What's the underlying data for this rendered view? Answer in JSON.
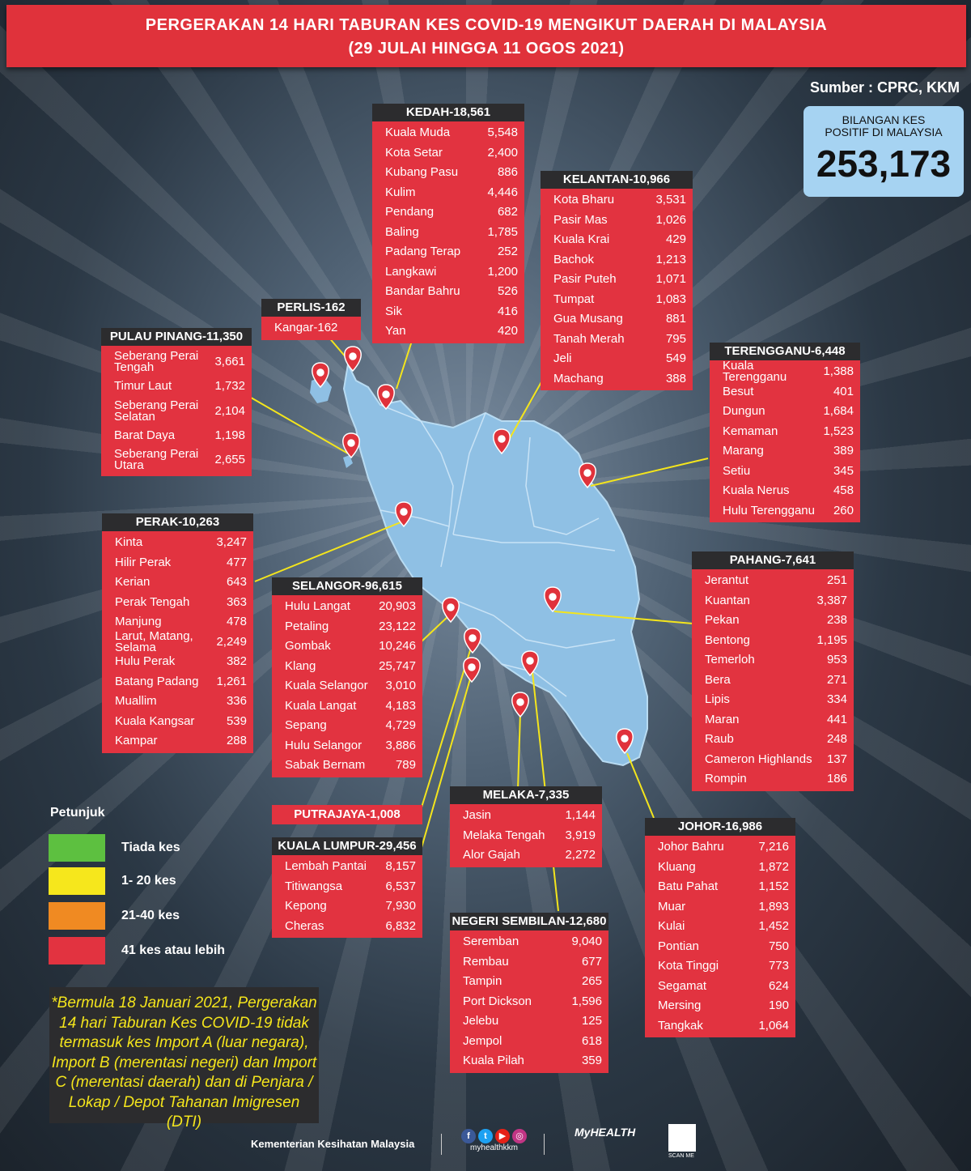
{
  "header": {
    "line1": "PERGERAKAN 14 HARI TABURAN KES COVID-19 MENGIKUT DAERAH DI MALAYSIA",
    "line2": "(29 JULAI HINGGA 11 OGOS 2021)"
  },
  "source": "Sumber : CPRC, KKM",
  "total": {
    "label_line1": "BILANGAN KES",
    "label_line2": "POSITIF DI MALAYSIA",
    "value": "253,173"
  },
  "states": {
    "kedah": {
      "title": "KEDAH-18,561",
      "items": [
        [
          "Kuala Muda",
          "5,548"
        ],
        [
          "Kota Setar",
          "2,400"
        ],
        [
          "Kubang Pasu",
          "886"
        ],
        [
          "Kulim",
          "4,446"
        ],
        [
          "Pendang",
          "682"
        ],
        [
          "Baling",
          "1,785"
        ],
        [
          "Padang Terap",
          "252"
        ],
        [
          "Langkawi",
          "1,200"
        ],
        [
          "Bandar Bahru",
          "526"
        ],
        [
          "Sik",
          "416"
        ],
        [
          "Yan",
          "420"
        ]
      ]
    },
    "kelantan": {
      "title": "KELANTAN-10,966",
      "items": [
        [
          "Kota Bharu",
          "3,531"
        ],
        [
          "Pasir Mas",
          "1,026"
        ],
        [
          "Kuala Krai",
          "429"
        ],
        [
          "Bachok",
          "1,213"
        ],
        [
          "Pasir Puteh",
          "1,071"
        ],
        [
          "Tumpat",
          "1,083"
        ],
        [
          "Gua Musang",
          "881"
        ],
        [
          "Tanah Merah",
          "795"
        ],
        [
          "Jeli",
          "549"
        ],
        [
          "Machang",
          "388"
        ]
      ]
    },
    "perlis": {
      "title": "PERLIS-162",
      "items": [
        [
          "Kangar-162",
          ""
        ]
      ]
    },
    "pulau_pinang": {
      "title": "PULAU PINANG-11,350",
      "items": [
        [
          "Seberang Perai Tengah",
          "3,661"
        ],
        [
          "Timur Laut",
          "1,732"
        ],
        [
          "Seberang Perai Selatan",
          "2,104"
        ],
        [
          "Barat Daya",
          "1,198"
        ],
        [
          "Seberang Perai Utara",
          "2,655"
        ]
      ]
    },
    "terengganu": {
      "title": "TERENGGANU-6,448",
      "items": [
        [
          "Kuala Terengganu",
          "1,388"
        ],
        [
          "Besut",
          "401"
        ],
        [
          "Dungun",
          "1,684"
        ],
        [
          "Kemaman",
          "1,523"
        ],
        [
          "Marang",
          "389"
        ],
        [
          "Setiu",
          "345"
        ],
        [
          "Kuala Nerus",
          "458"
        ],
        [
          "Hulu Terengganu",
          "260"
        ]
      ]
    },
    "perak": {
      "title": "PERAK-10,263",
      "items": [
        [
          "Kinta",
          "3,247"
        ],
        [
          "Hilir Perak",
          "477"
        ],
        [
          "Kerian",
          "643"
        ],
        [
          "Perak Tengah",
          "363"
        ],
        [
          "Manjung",
          "478"
        ],
        [
          "Larut, Matang, Selama",
          "2,249"
        ],
        [
          "Hulu Perak",
          "382"
        ],
        [
          "Batang Padang",
          "1,261"
        ],
        [
          "Muallim",
          "336"
        ],
        [
          "Kuala Kangsar",
          "539"
        ],
        [
          "Kampar",
          "288"
        ]
      ]
    },
    "selangor": {
      "title": "SELANGOR-96,615",
      "items": [
        [
          "Hulu Langat",
          "20,903"
        ],
        [
          "Petaling",
          "23,122"
        ],
        [
          "Gombak",
          "10,246"
        ],
        [
          "Klang",
          "25,747"
        ],
        [
          "Kuala Selangor",
          "3,010"
        ],
        [
          "Kuala Langat",
          "4,183"
        ],
        [
          "Sepang",
          "4,729"
        ],
        [
          "Hulu Selangor",
          "3,886"
        ],
        [
          "Sabak Bernam",
          "789"
        ]
      ]
    },
    "pahang": {
      "title": "PAHANG-7,641",
      "items": [
        [
          "Jerantut",
          "251"
        ],
        [
          "Kuantan",
          "3,387"
        ],
        [
          "Pekan",
          "238"
        ],
        [
          "Bentong",
          "1,195"
        ],
        [
          "Temerloh",
          "953"
        ],
        [
          "Bera",
          "271"
        ],
        [
          "Lipis",
          "334"
        ],
        [
          "Maran",
          "441"
        ],
        [
          "Raub",
          "248"
        ],
        [
          "Cameron Highlands",
          "137"
        ],
        [
          "Rompin",
          "186"
        ]
      ]
    },
    "putrajaya": {
      "title": "PUTRAJAYA-1,008"
    },
    "kuala_lumpur": {
      "title": "KUALA LUMPUR-29,456",
      "items": [
        [
          "Lembah Pantai",
          "8,157"
        ],
        [
          "Titiwangsa",
          "6,537"
        ],
        [
          "Kepong",
          "7,930"
        ],
        [
          "Cheras",
          "6,832"
        ]
      ]
    },
    "melaka": {
      "title": "MELAKA-7,335",
      "items": [
        [
          "Jasin",
          "1,144"
        ],
        [
          "Melaka Tengah",
          "3,919"
        ],
        [
          "Alor Gajah",
          "2,272"
        ]
      ]
    },
    "negeri_sembilan": {
      "title": "NEGERI SEMBILAN-12,680",
      "items": [
        [
          "Seremban",
          "9,040"
        ],
        [
          "Rembau",
          "677"
        ],
        [
          "Tampin",
          "265"
        ],
        [
          "Port Dickson",
          "1,596"
        ],
        [
          "Jelebu",
          "125"
        ],
        [
          "Jempol",
          "618"
        ],
        [
          "Kuala Pilah",
          "359"
        ]
      ]
    },
    "johor": {
      "title": "JOHOR-16,986",
      "items": [
        [
          "Johor Bahru",
          "7,216"
        ],
        [
          "Kluang",
          "1,872"
        ],
        [
          "Batu Pahat",
          "1,152"
        ],
        [
          "Muar",
          "1,893"
        ],
        [
          "Kulai",
          "1,452"
        ],
        [
          "Pontian",
          "750"
        ],
        [
          "Kota Tinggi",
          "773"
        ],
        [
          "Segamat",
          "624"
        ],
        [
          "Mersing",
          "190"
        ],
        [
          "Tangkak",
          "1,064"
        ]
      ]
    }
  },
  "legend": {
    "title": "Petunjuk",
    "items": [
      {
        "label": "Tiada kes",
        "color": "#5dc040"
      },
      {
        "label": "1- 20 kes",
        "color": "#f6e71c"
      },
      {
        "label": "21-40 kes",
        "color": "#f08a22"
      },
      {
        "label": "41 kes atau lebih",
        "color": "#e23340"
      }
    ]
  },
  "note": "*Bermula 18 Januari 2021, Pergerakan 14 hari Taburan Kes COVID-19 tidak termasuk kes Import A (luar negara), Import B (merentasi negeri) dan Import C (merentasi daerah) dan di Penjara / Lokap / Depot Tahanan Imigresen (DTI)",
  "footer": {
    "ministry": "Kementerian Kesihatan Malaysia",
    "handle": "myhealthkkm",
    "logo": "MyHEALTH",
    "qr_label": "SCAN ME"
  },
  "colors": {
    "header": "#e0323b",
    "panel_red": "#e23340",
    "panel_title": "#2c2c2e",
    "map_fill": "#8fc0e4",
    "leader": "#f4e51c",
    "pin": "#e0323b"
  }
}
